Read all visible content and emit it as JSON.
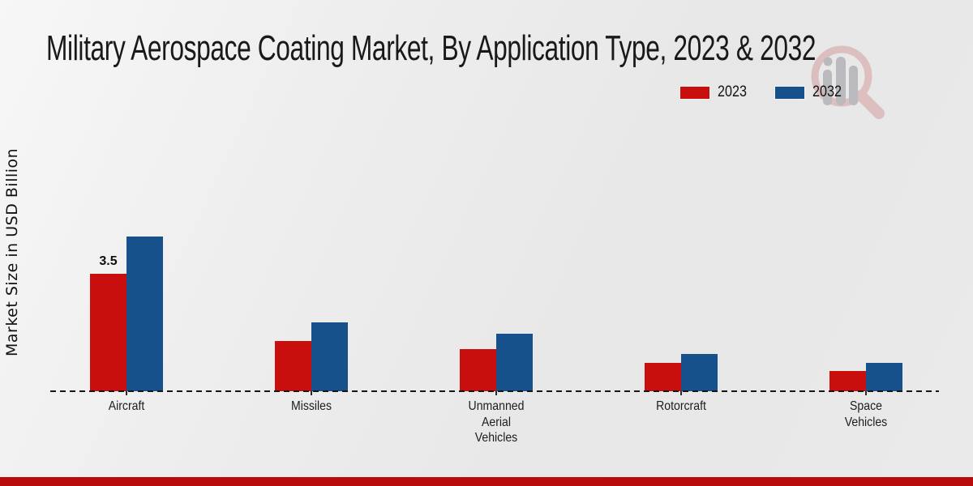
{
  "chart_data": {
    "type": "bar",
    "title": "Military Aerospace Coating Market, By Application Type, 2023 & 2032",
    "ylabel": "Market Size in USD Billion",
    "xlabel": "",
    "categories": [
      "Aircraft",
      "Missiles",
      "Unmanned\nAerial\nVehicles",
      "Rotorcraft",
      "Space\nVehicles"
    ],
    "series": [
      {
        "name": "2023",
        "color": "#c90e0e",
        "values": [
          3.5,
          1.5,
          1.25,
          0.85,
          0.6
        ]
      },
      {
        "name": "2032",
        "color": "#17518c",
        "values": [
          4.6,
          2.05,
          1.7,
          1.1,
          0.85
        ]
      }
    ],
    "annotations": [
      {
        "series_index": 0,
        "category_index": 0,
        "text": "3.5"
      }
    ],
    "ylim": [
      0,
      5
    ],
    "grid": false,
    "legend_position": "top-right",
    "baseline_style": "dashed"
  },
  "colors": {
    "series_2023": "#c90e0e",
    "series_2032": "#17518c",
    "footer_bar": "#b80c0c",
    "title_text": "#191919"
  }
}
